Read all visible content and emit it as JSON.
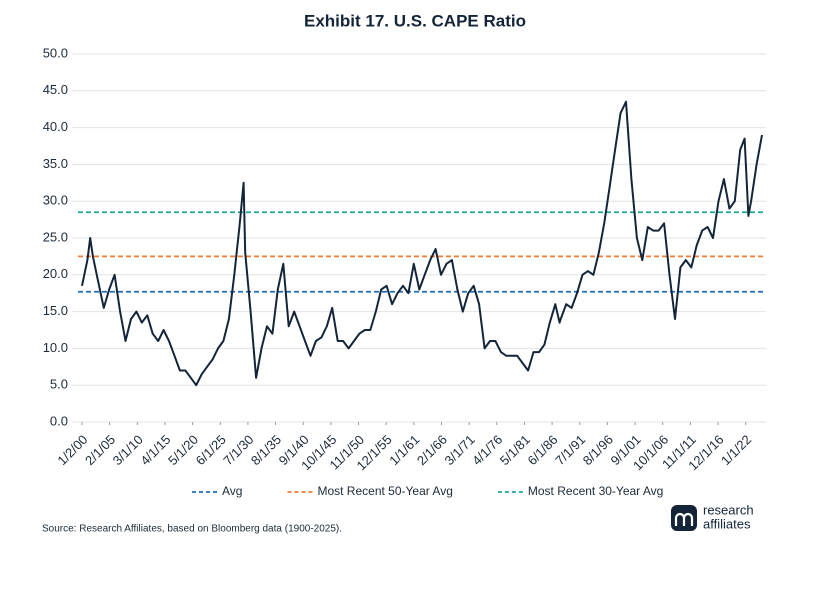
{
  "chart_data": {
    "type": "line",
    "title": "Exhibit 17. U.S. CAPE Ratio",
    "source": "Source: Research Affiliates, based on Bloomberg data (1900-2025).",
    "logo": [
      "research",
      "affiliates"
    ],
    "xlim": [
      1900,
      2025
    ],
    "ylim": [
      0,
      50
    ],
    "grid": true,
    "yticks": [
      {
        "value": 0,
        "label": "0.0"
      },
      {
        "value": 5,
        "label": "5.0"
      },
      {
        "value": 10,
        "label": "10.0"
      },
      {
        "value": 15,
        "label": "15.0"
      },
      {
        "value": 20,
        "label": "20.0"
      },
      {
        "value": 25,
        "label": "25.0"
      },
      {
        "value": 30,
        "label": "30.0"
      },
      {
        "value": 35,
        "label": "35.0"
      },
      {
        "value": 40,
        "label": "40.0"
      },
      {
        "value": 45,
        "label": "45.0"
      },
      {
        "value": 50,
        "label": "50.0"
      }
    ],
    "xticks": [
      {
        "value": 1900.0,
        "label": "1/2/00"
      },
      {
        "value": 1905.08,
        "label": "2/1/05"
      },
      {
        "value": 1910.17,
        "label": "3/1/10"
      },
      {
        "value": 1915.25,
        "label": "4/1/15"
      },
      {
        "value": 1920.33,
        "label": "5/1/20"
      },
      {
        "value": 1925.42,
        "label": "6/1/25"
      },
      {
        "value": 1930.5,
        "label": "7/1/30"
      },
      {
        "value": 1935.58,
        "label": "8/1/35"
      },
      {
        "value": 1940.67,
        "label": "9/1/40"
      },
      {
        "value": 1945.75,
        "label": "10/1/45"
      },
      {
        "value": 1950.83,
        "label": "11/1/50"
      },
      {
        "value": 1955.92,
        "label": "12/1/55"
      },
      {
        "value": 1961.0,
        "label": "1/1/61"
      },
      {
        "value": 1966.08,
        "label": "2/1/66"
      },
      {
        "value": 1971.17,
        "label": "3/1/71"
      },
      {
        "value": 1976.25,
        "label": "4/1/76"
      },
      {
        "value": 1981.33,
        "label": "5/1/81"
      },
      {
        "value": 1986.42,
        "label": "6/1/86"
      },
      {
        "value": 1991.5,
        "label": "7/1/91"
      },
      {
        "value": 1996.58,
        "label": "8/1/96"
      },
      {
        "value": 2001.67,
        "label": "9/1/01"
      },
      {
        "value": 2006.75,
        "label": "10/1/06"
      },
      {
        "value": 2011.83,
        "label": "11/1/11"
      },
      {
        "value": 2016.92,
        "label": "12/1/16"
      },
      {
        "value": 2022.0,
        "label": "1/1/22"
      }
    ],
    "series": [
      {
        "color": "#14253a",
        "x": [
          1900,
          1901,
          1901.5,
          1902,
          1903,
          1904,
          1905,
          1906,
          1907,
          1908,
          1909,
          1910,
          1911,
          1912,
          1913,
          1914,
          1915,
          1916,
          1917,
          1918,
          1919,
          1920,
          1921,
          1922,
          1923,
          1924,
          1925,
          1926,
          1927,
          1928,
          1929,
          1929.7,
          1930,
          1931,
          1932,
          1933,
          1934,
          1935,
          1936,
          1937,
          1938,
          1939,
          1940,
          1941,
          1942,
          1943,
          1944,
          1945,
          1946,
          1947,
          1948,
          1949,
          1950,
          1951,
          1952,
          1953,
          1954,
          1955,
          1956,
          1957,
          1958,
          1959,
          1960,
          1961,
          1962,
          1963,
          1964,
          1965,
          1966,
          1967,
          1968,
          1969,
          1970,
          1971,
          1972,
          1973,
          1974,
          1975,
          1976,
          1977,
          1978,
          1979,
          1980,
          1981,
          1982,
          1983,
          1984,
          1985,
          1986,
          1987,
          1987.8,
          1988,
          1989,
          1990,
          1991,
          1992,
          1993,
          1994,
          1995,
          1996,
          1997,
          1998,
          1999,
          2000,
          2001,
          2002,
          2003,
          2004,
          2005,
          2006,
          2007,
          2008,
          2009,
          2010,
          2011,
          2012,
          2013,
          2014,
          2015,
          2016,
          2017,
          2018,
          2019,
          2020,
          2021,
          2021.8,
          2022.5,
          2023,
          2024,
          2025
        ],
        "values": [
          18.5,
          22,
          25,
          22.5,
          19,
          15.5,
          18,
          20,
          15,
          11,
          14,
          15,
          13.5,
          14.5,
          12,
          11,
          12.5,
          11,
          9,
          7,
          7,
          6,
          5,
          6.5,
          7.5,
          8.5,
          10,
          11,
          14,
          20,
          27,
          32.5,
          23,
          15,
          6,
          10,
          13,
          12,
          18,
          21.5,
          13,
          15,
          13,
          11,
          9,
          11,
          11.5,
          13,
          15.5,
          11,
          11,
          10,
          11,
          12,
          12.5,
          12.5,
          15,
          18,
          18.5,
          16,
          17.5,
          18.5,
          17.5,
          21.5,
          18,
          20,
          22,
          23.5,
          20,
          21.5,
          22,
          18,
          15,
          17.5,
          18.5,
          16,
          10,
          11,
          11,
          9.5,
          9,
          9,
          9,
          8,
          7,
          9.5,
          9.5,
          10.5,
          13.5,
          16,
          13.5,
          14,
          16,
          15.5,
          17.5,
          20,
          20.5,
          20,
          23,
          27,
          32,
          37,
          42,
          43.5,
          33,
          25,
          22,
          26.5,
          26,
          26,
          27,
          20,
          14,
          21,
          22,
          21,
          24,
          26,
          26.5,
          25,
          30,
          33,
          29,
          30,
          37,
          38.5,
          28,
          30,
          35,
          39
        ]
      }
    ],
    "reference_lines": [
      {
        "name": "Avg",
        "value": 17.7,
        "color": "#1f6fb8"
      },
      {
        "name": "Most Recent 50-Year Avg",
        "value": 22.5,
        "color": "#f07d32"
      },
      {
        "name": "Most Recent 30-Year Avg",
        "value": 28.5,
        "color": "#1aa89a"
      }
    ]
  }
}
